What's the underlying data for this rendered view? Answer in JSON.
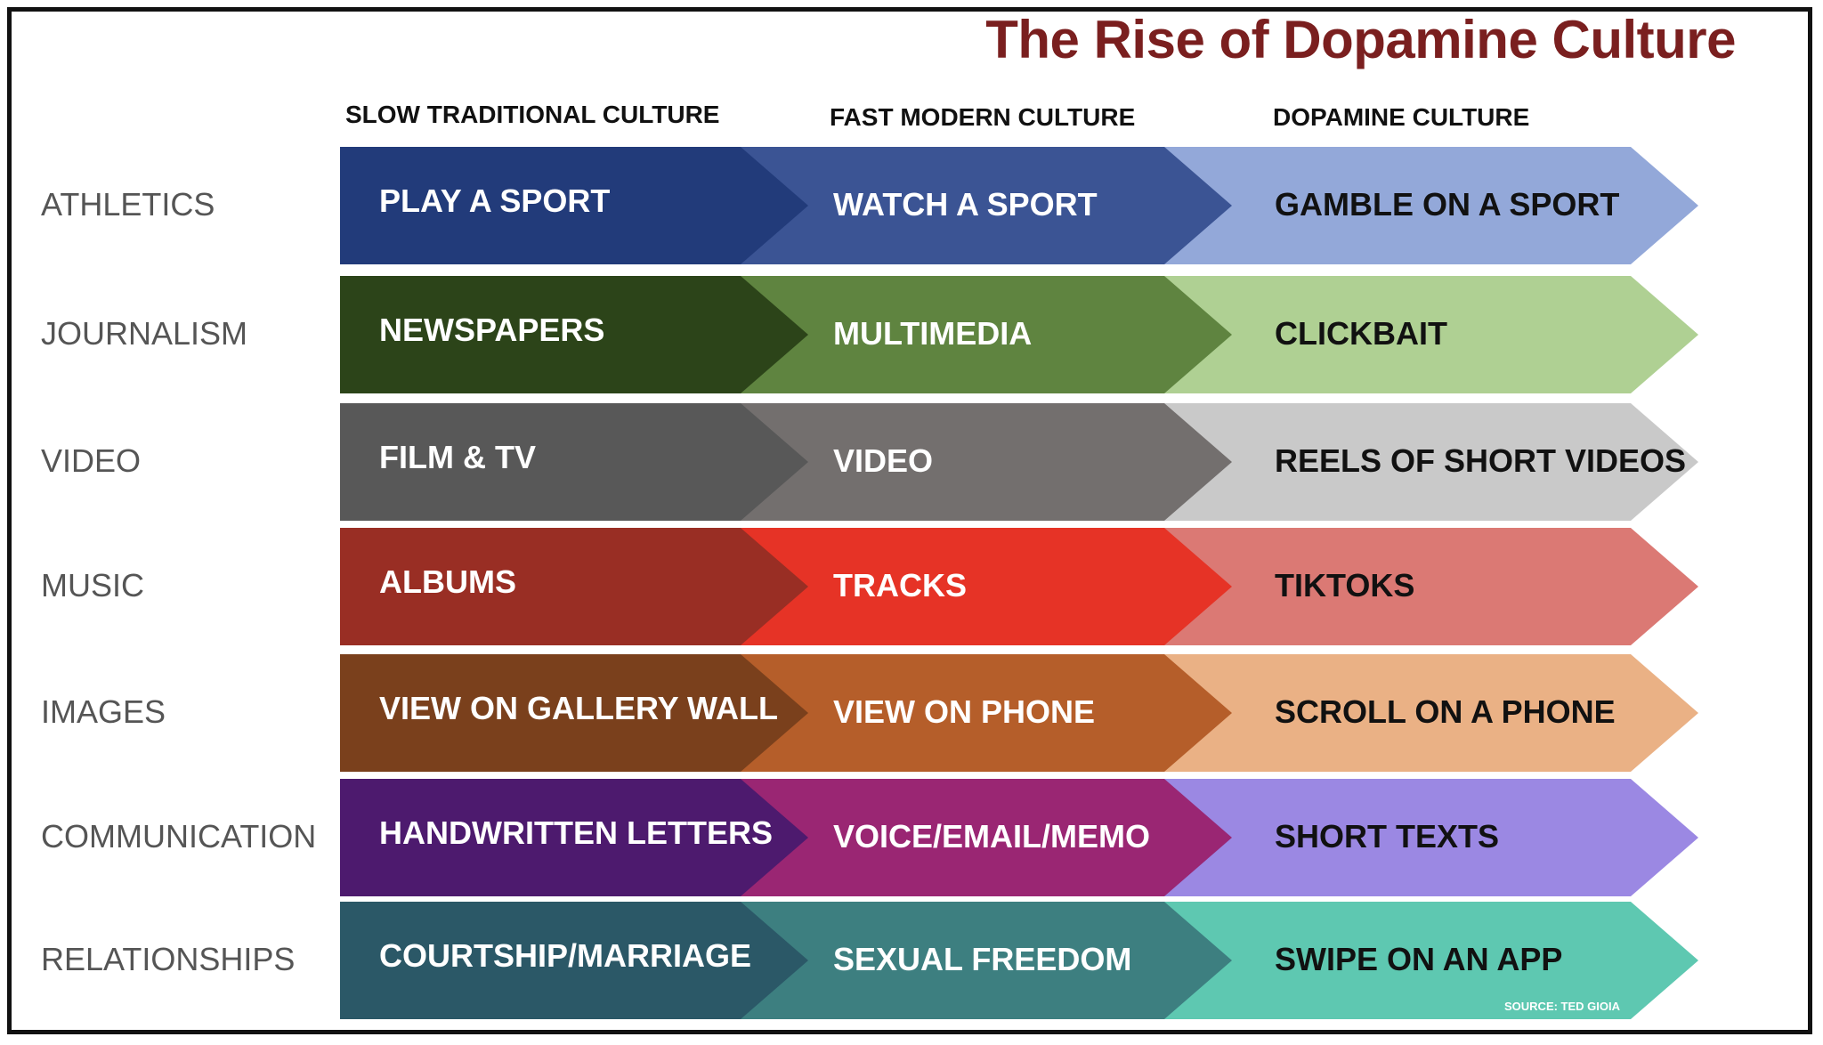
{
  "title": "The Rise of Dopamine Culture",
  "columns": [
    {
      "label": "SLOW TRADITIONAL CULTURE"
    },
    {
      "label": "FAST MODERN CULTURE"
    },
    {
      "label": "DOPAMINE CULTURE"
    }
  ],
  "rows": [
    {
      "label": "ATHLETICS",
      "cells": [
        "PLAY A SPORT",
        "WATCH A SPORT",
        "GAMBLE ON A SPORT"
      ],
      "colors": [
        "#223b7a",
        "#3b5494",
        "#93a8d9"
      ]
    },
    {
      "label": "JOURNALISM",
      "cells": [
        "NEWSPAPERS",
        "MULTIMEDIA",
        "CLICKBAIT"
      ],
      "colors": [
        "#2c4419",
        "#5f8440",
        "#afd093"
      ]
    },
    {
      "label": "VIDEO",
      "cells": [
        "FILM &  TV",
        "VIDEO",
        "REELS OF SHORT VIDEOS"
      ],
      "colors": [
        "#585858",
        "#736f6e",
        "#c9c9c9"
      ]
    },
    {
      "label": "MUSIC",
      "cells": [
        "ALBUMS",
        "TRACKS",
        "TIKTOKS"
      ],
      "colors": [
        "#992e24",
        "#e63326",
        "#db7974"
      ]
    },
    {
      "label": "IMAGES",
      "cells": [
        "VIEW ON GALLERY WALL",
        "VIEW ON PHONE",
        "SCROLL ON A PHONE"
      ],
      "colors": [
        "#7a401c",
        "#b55e2a",
        "#eab185"
      ]
    },
    {
      "label": "COMMUNICATION",
      "cells": [
        "HANDWRITTEN LETTERS",
        "VOICE/EMAIL/MEMO",
        "SHORT TEXTS"
      ],
      "colors": [
        "#4d1a6e",
        "#9a2673",
        "#9b88e3"
      ]
    },
    {
      "label": "RELATIONSHIPS",
      "cells": [
        "COURTSHIP/MARRIAGE",
        "SEXUAL FREEDOM",
        "SWIPE ON AN APP"
      ],
      "colors": [
        "#2b5867",
        "#3d7f80",
        "#5ec8b1"
      ]
    }
  ],
  "text_colors": [
    "#ffffff",
    "#ffffff",
    "#111111"
  ],
  "source": "SOURCE: TED GIOIA"
}
